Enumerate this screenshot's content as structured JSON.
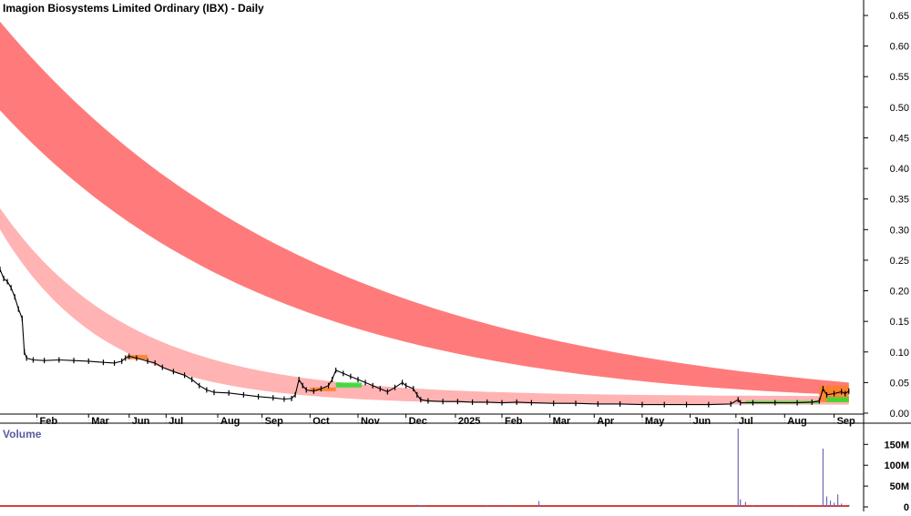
{
  "title": "Imagion Biosystems Limited Ordinary (IBX) - Daily",
  "volume_label": "Volume",
  "colors": {
    "long_band": "#ff7b7b",
    "short_band": "#ffb3b3",
    "price_line": "#000000",
    "volume_bar": "#6b6bb0",
    "volume_base": "#cc0000",
    "mma_orange": "#ff7f27",
    "mma_green": "#33dd33",
    "grid": "#b8b8b8"
  },
  "chart_data": [
    {
      "type": "line",
      "name": "price",
      "title": "Imagion Biosystems Limited Ordinary (IBX) - Daily",
      "x_ticks": [
        {
          "label": "Feb",
          "t": 0.05
        },
        {
          "label": "Mar",
          "t": 0.12
        },
        {
          "label": "Jun",
          "t": 0.175
        },
        {
          "label": "Jul",
          "t": 0.225
        },
        {
          "label": "Aug",
          "t": 0.295
        },
        {
          "label": "Sep",
          "t": 0.355
        },
        {
          "label": "Oct",
          "t": 0.42
        },
        {
          "label": "Nov",
          "t": 0.485
        },
        {
          "label": "Dec",
          "t": 0.55
        },
        {
          "label": "2025",
          "t": 0.617
        },
        {
          "label": "Feb",
          "t": 0.68
        },
        {
          "label": "Mar",
          "t": 0.745
        },
        {
          "label": "Apr",
          "t": 0.805
        },
        {
          "label": "May",
          "t": 0.87
        },
        {
          "label": "Jun",
          "t": 0.935
        },
        {
          "label": "Jul",
          "t": 0.997
        },
        {
          "label": "Aug",
          "t": 1.063
        },
        {
          "label": "Sep",
          "t": 1.13
        }
      ],
      "x_range": [
        0,
        1.17
      ],
      "y_ticks": [
        "0.65",
        "0.60",
        "0.55",
        "0.50",
        "0.45",
        "0.40",
        "0.35",
        "0.30",
        "0.25",
        "0.20",
        "0.15",
        "0.10",
        "0.05",
        "0.00"
      ],
      "ylim": [
        0,
        0.65
      ],
      "grid": true,
      "series": [
        {
          "kind": "price",
          "points": [
            [
              0.0,
              0.235
            ],
            [
              0.005,
              0.22
            ],
            [
              0.01,
              0.215
            ],
            [
              0.015,
              0.205
            ],
            [
              0.02,
              0.19
            ],
            [
              0.025,
              0.17
            ],
            [
              0.03,
              0.155
            ],
            [
              0.033,
              0.1
            ],
            [
              0.036,
              0.09
            ],
            [
              0.045,
              0.087
            ],
            [
              0.06,
              0.086
            ],
            [
              0.08,
              0.087
            ],
            [
              0.1,
              0.086
            ],
            [
              0.12,
              0.085
            ],
            [
              0.14,
              0.083
            ],
            [
              0.155,
              0.082
            ],
            [
              0.165,
              0.085
            ],
            [
              0.17,
              0.09
            ],
            [
              0.175,
              0.093
            ],
            [
              0.185,
              0.09
            ],
            [
              0.2,
              0.085
            ],
            [
              0.21,
              0.082
            ],
            [
              0.22,
              0.075
            ],
            [
              0.235,
              0.068
            ],
            [
              0.25,
              0.062
            ],
            [
              0.26,
              0.055
            ],
            [
              0.27,
              0.045
            ],
            [
              0.28,
              0.038
            ],
            [
              0.29,
              0.034
            ],
            [
              0.31,
              0.033
            ],
            [
              0.33,
              0.03
            ],
            [
              0.35,
              0.027
            ],
            [
              0.37,
              0.025
            ],
            [
              0.385,
              0.023
            ],
            [
              0.395,
              0.024
            ],
            [
              0.4,
              0.03
            ],
            [
              0.405,
              0.055
            ],
            [
              0.41,
              0.045
            ],
            [
              0.415,
              0.038
            ],
            [
              0.425,
              0.036
            ],
            [
              0.435,
              0.04
            ],
            [
              0.445,
              0.045
            ],
            [
              0.45,
              0.055
            ],
            [
              0.455,
              0.07
            ],
            [
              0.465,
              0.065
            ],
            [
              0.475,
              0.06
            ],
            [
              0.485,
              0.055
            ],
            [
              0.495,
              0.05
            ],
            [
              0.505,
              0.045
            ],
            [
              0.515,
              0.04
            ],
            [
              0.525,
              0.035
            ],
            [
              0.535,
              0.042
            ],
            [
              0.545,
              0.05
            ],
            [
              0.55,
              0.045
            ],
            [
              0.56,
              0.04
            ],
            [
              0.565,
              0.03
            ],
            [
              0.57,
              0.022
            ],
            [
              0.58,
              0.02
            ],
            [
              0.6,
              0.019
            ],
            [
              0.62,
              0.019
            ],
            [
              0.64,
              0.018
            ],
            [
              0.66,
              0.018
            ],
            [
              0.68,
              0.017
            ],
            [
              0.7,
              0.018
            ],
            [
              0.72,
              0.017
            ],
            [
              0.75,
              0.016
            ],
            [
              0.78,
              0.016
            ],
            [
              0.81,
              0.015
            ],
            [
              0.84,
              0.015
            ],
            [
              0.87,
              0.014
            ],
            [
              0.9,
              0.014
            ],
            [
              0.93,
              0.014
            ],
            [
              0.96,
              0.014
            ],
            [
              0.99,
              0.015
            ],
            [
              1.0,
              0.022
            ],
            [
              1.003,
              0.017
            ],
            [
              1.02,
              0.017
            ],
            [
              1.05,
              0.017
            ],
            [
              1.08,
              0.017
            ],
            [
              1.1,
              0.018
            ],
            [
              1.11,
              0.02
            ],
            [
              1.115,
              0.04
            ],
            [
              1.12,
              0.03
            ],
            [
              1.13,
              0.032
            ],
            [
              1.14,
              0.035
            ],
            [
              1.145,
              0.032
            ],
            [
              1.15,
              0.036
            ]
          ]
        }
      ],
      "bands": {
        "long": {
          "x_start": 0.0,
          "x_end": 1.15,
          "upper_start": 0.64,
          "upper_end": 0.05,
          "lower_start": 0.495,
          "lower_end": 0.03
        },
        "short": {
          "x_start": 0.0,
          "x_end": 1.15,
          "upper_start": 0.335,
          "upper_end": 0.028,
          "lower_start": 0.3,
          "lower_end": 0.014
        }
      }
    },
    {
      "type": "bar",
      "name": "volume",
      "y_ticks": [
        "150M",
        "100M",
        "50M",
        "0"
      ],
      "ylim": [
        0,
        190
      ],
      "spikes": [
        [
          0.565,
          5
        ],
        [
          0.57,
          4
        ],
        [
          0.575,
          3
        ],
        [
          0.66,
          3
        ],
        [
          0.69,
          4
        ],
        [
          0.73,
          14
        ],
        [
          1.0,
          188
        ],
        [
          1.003,
          18
        ],
        [
          1.01,
          12
        ],
        [
          1.02,
          3
        ],
        [
          1.05,
          2
        ],
        [
          1.08,
          3
        ],
        [
          1.115,
          140
        ],
        [
          1.12,
          25
        ],
        [
          1.125,
          15
        ],
        [
          1.13,
          10
        ],
        [
          1.135,
          30
        ],
        [
          1.14,
          8
        ],
        [
          1.15,
          5
        ]
      ]
    }
  ]
}
